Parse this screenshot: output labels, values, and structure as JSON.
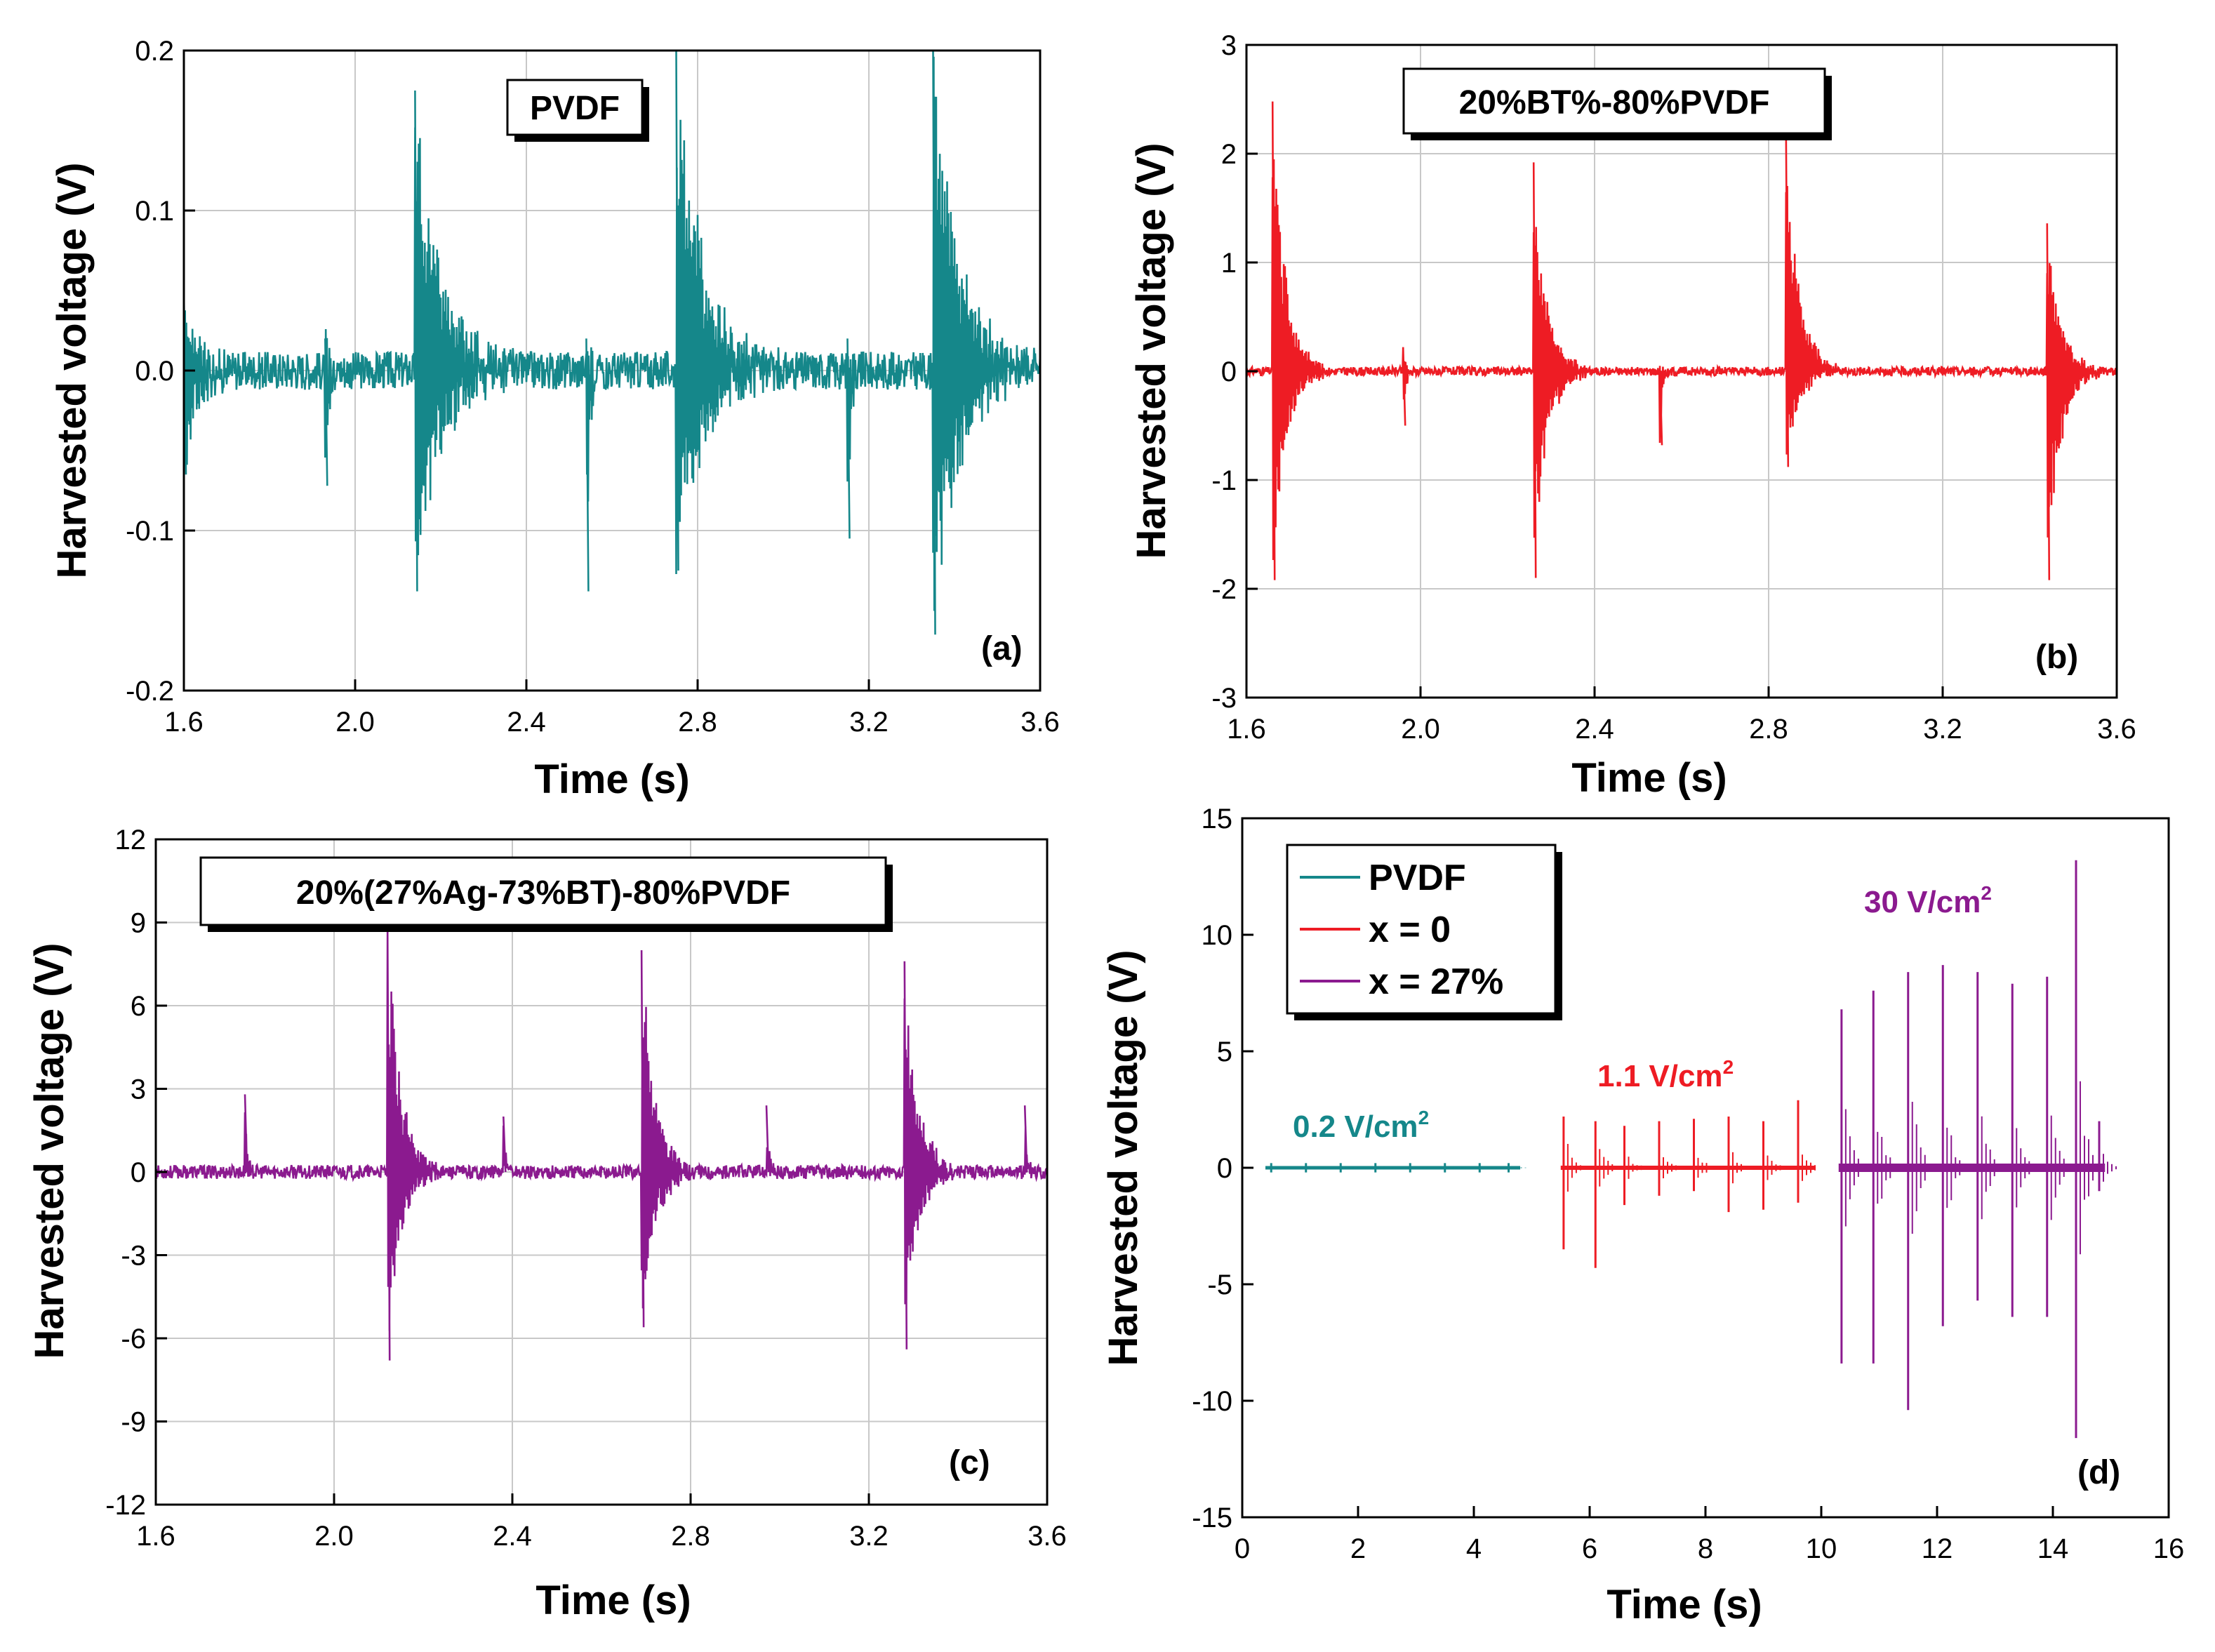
{
  "colors": {
    "pvdf": "#15878a",
    "bt": "#ee1c24",
    "ag": "#8b1a8f",
    "grid": "#c8c8c8"
  },
  "chart_data": [
    {
      "id": "a",
      "type": "line",
      "title": "",
      "box_label": "PVDF",
      "panel_label": "(a)",
      "xlabel": "Time (s)",
      "ylabel": "Harvested voltage (V)",
      "xlim": [
        1.6,
        3.6
      ],
      "ylim": [
        -0.2,
        0.2
      ],
      "xticks": [
        1.6,
        2.0,
        2.4,
        2.8,
        3.2,
        3.6
      ],
      "xtick_labels": [
        "1.6",
        "2.0",
        "2.4",
        "2.8",
        "3.2",
        "3.6"
      ],
      "yticks": [
        -0.2,
        -0.1,
        0.0,
        0.1,
        0.2
      ],
      "ytick_labels": [
        "-0.2",
        "-0.1",
        "0.0",
        "0.1",
        "0.2"
      ],
      "grid": true,
      "series": [
        {
          "name": "PVDF",
          "color": "#15878a",
          "noise": 0.012,
          "bursts": [
            {
              "t": 1.6,
              "pos": 0.05,
              "neg": -0.065,
              "decay": 0.03
            },
            {
              "t": 1.93,
              "pos": 0.02,
              "neg": -0.072,
              "decay": 0.008
            },
            {
              "t": 2.14,
              "pos": 0.175,
              "neg": -0.138,
              "decay": 0.06
            },
            {
              "t": 2.54,
              "pos": 0.02,
              "neg": -0.138,
              "decay": 0.008
            },
            {
              "t": 2.75,
              "pos": 0.2,
              "neg": -0.125,
              "decay": 0.06
            },
            {
              "t": 3.15,
              "pos": 0.02,
              "neg": -0.105,
              "decay": 0.008
            },
            {
              "t": 3.35,
              "pos": 0.2,
              "neg": -0.165,
              "decay": 0.06
            }
          ]
        }
      ]
    },
    {
      "id": "b",
      "type": "line",
      "title": "",
      "box_label": "20%BT%-80%PVDF",
      "panel_label": "(b)",
      "xlabel": "Time (s)",
      "ylabel": "Harvested voltage (V)",
      "xlim": [
        1.6,
        3.6
      ],
      "ylim": [
        -3,
        3
      ],
      "xticks": [
        1.6,
        2.0,
        2.4,
        2.8,
        3.2,
        3.6
      ],
      "xtick_labels": [
        "1.6",
        "2.0",
        "2.4",
        "2.8",
        "3.2",
        "3.6"
      ],
      "yticks": [
        -3,
        -2,
        -1,
        0,
        1,
        2,
        3
      ],
      "ytick_labels": [
        "-3",
        "-2",
        "-1",
        "0",
        "1",
        "2",
        "3"
      ],
      "grid": true,
      "series": [
        {
          "name": "x = 0",
          "color": "#ee1c24",
          "noise": 0.04,
          "bursts": [
            {
              "t": 1.66,
              "pos": 2.48,
              "neg": -1.92,
              "decay": 0.03
            },
            {
              "t": 1.96,
              "pos": 0.22,
              "neg": -0.5,
              "decay": 0.006
            },
            {
              "t": 2.26,
              "pos": 1.92,
              "neg": -1.9,
              "decay": 0.03
            },
            {
              "t": 2.55,
              "pos": 0.05,
              "neg": -0.68,
              "decay": 0.006
            },
            {
              "t": 2.84,
              "pos": 2.2,
              "neg": -0.88,
              "decay": 0.03
            },
            {
              "t": 3.44,
              "pos": 1.36,
              "neg": -1.92,
              "decay": 0.03
            }
          ]
        }
      ]
    },
    {
      "id": "c",
      "type": "line",
      "title": "",
      "box_label": "20%(27%Ag-73%BT)-80%PVDF",
      "panel_label": "(c)",
      "xlabel": "Time (s)",
      "ylabel": "Harvested voltage (V)",
      "xlim": [
        1.6,
        3.6
      ],
      "ylim": [
        -12,
        12
      ],
      "xticks": [
        1.6,
        2.0,
        2.4,
        2.8,
        3.2,
        3.6
      ],
      "xtick_labels": [
        "1.6",
        "2.0",
        "2.4",
        "2.8",
        "3.2",
        "3.6"
      ],
      "yticks": [
        -12,
        -9,
        -6,
        -3,
        0,
        3,
        6,
        9,
        12
      ],
      "ytick_labels": [
        "-12",
        "-9",
        "-6",
        "-3",
        "0",
        "3",
        "6",
        "9",
        "12"
      ],
      "grid": true,
      "series": [
        {
          "name": "x = 27%",
          "color": "#8b1a8f",
          "noise": 0.25,
          "bursts": [
            {
              "t": 1.8,
              "pos": 2.8,
              "neg": 0.0,
              "decay": 0.005
            },
            {
              "t": 2.12,
              "pos": 8.7,
              "neg": -6.8,
              "decay": 0.03
            },
            {
              "t": 2.38,
              "pos": 2.0,
              "neg": 0.0,
              "decay": 0.005
            },
            {
              "t": 2.69,
              "pos": 8.0,
              "neg": -5.6,
              "decay": 0.03
            },
            {
              "t": 2.97,
              "pos": 2.4,
              "neg": 0.0,
              "decay": 0.005
            },
            {
              "t": 3.28,
              "pos": 7.6,
              "neg": -6.4,
              "decay": 0.03
            },
            {
              "t": 3.55,
              "pos": 2.4,
              "neg": 0.0,
              "decay": 0.005
            }
          ]
        }
      ]
    },
    {
      "id": "d",
      "type": "line",
      "title": "",
      "panel_label": "(d)",
      "xlabel": "Time (s)",
      "ylabel": "Harvested voltage (V)",
      "xlim": [
        0,
        16
      ],
      "ylim": [
        -15,
        15
      ],
      "xticks": [
        0,
        2,
        4,
        6,
        8,
        10,
        12,
        14,
        16
      ],
      "xtick_labels": [
        "0",
        "2",
        "4",
        "6",
        "8",
        "10",
        "12",
        "14",
        "16"
      ],
      "yticks": [
        -15,
        -10,
        -5,
        0,
        5,
        10,
        15
      ],
      "ytick_labels": [
        "-15",
        "-10",
        "-5",
        "0",
        "5",
        "10",
        "15"
      ],
      "grid": false,
      "legend": {
        "position": "top-left",
        "entries": [
          "PVDF",
          "x = 0",
          "x = 27%"
        ]
      },
      "annotations": [
        {
          "text": "0.2 V/cm",
          "sup": "2",
          "series": "PVDF"
        },
        {
          "text": "1.1 V/cm",
          "sup": "2",
          "series": "x = 0"
        },
        {
          "text": "30 V/cm",
          "sup": "2",
          "series": "x = 27%"
        }
      ],
      "series": [
        {
          "name": "PVDF",
          "color": "#15878a",
          "x_range": [
            0.4,
            4.8
          ],
          "spikes": [
            {
              "t": 0.5,
              "pos": 0.2,
              "neg": -0.2
            },
            {
              "t": 1.1,
              "pos": 0.2,
              "neg": -0.2
            },
            {
              "t": 1.7,
              "pos": 0.2,
              "neg": -0.2
            },
            {
              "t": 2.3,
              "pos": 0.2,
              "neg": -0.2
            },
            {
              "t": 2.9,
              "pos": 0.2,
              "neg": -0.2
            },
            {
              "t": 3.5,
              "pos": 0.2,
              "neg": -0.2
            },
            {
              "t": 4.1,
              "pos": 0.2,
              "neg": -0.2
            },
            {
              "t": 4.6,
              "pos": 0.2,
              "neg": -0.2
            }
          ]
        },
        {
          "name": "x = 0",
          "color": "#ee1c24",
          "x_range": [
            5.5,
            9.9
          ],
          "spikes": [
            {
              "t": 5.55,
              "pos": 2.2,
              "neg": -3.5
            },
            {
              "t": 6.1,
              "pos": 2.0,
              "neg": -4.3
            },
            {
              "t": 6.6,
              "pos": 1.8,
              "neg": -1.6
            },
            {
              "t": 7.2,
              "pos": 2.0,
              "neg": -1.2
            },
            {
              "t": 7.8,
              "pos": 2.1,
              "neg": -1.0
            },
            {
              "t": 8.4,
              "pos": 2.2,
              "neg": -1.9
            },
            {
              "t": 9.0,
              "pos": 2.0,
              "neg": -1.8
            },
            {
              "t": 9.6,
              "pos": 2.9,
              "neg": -1.5
            }
          ]
        },
        {
          "name": "x = 27%",
          "color": "#8b1a8f",
          "x_range": [
            10.3,
            14.9
          ],
          "spikes": [
            {
              "t": 10.35,
              "pos": 6.8,
              "neg": -8.4
            },
            {
              "t": 10.9,
              "pos": 7.6,
              "neg": -8.4
            },
            {
              "t": 11.5,
              "pos": 8.4,
              "neg": -10.4
            },
            {
              "t": 12.1,
              "pos": 8.7,
              "neg": -6.8
            },
            {
              "t": 12.7,
              "pos": 8.4,
              "neg": -5.7
            },
            {
              "t": 13.3,
              "pos": 7.9,
              "neg": -6.4
            },
            {
              "t": 13.9,
              "pos": 8.2,
              "neg": -6.4
            },
            {
              "t": 14.4,
              "pos": 13.2,
              "neg": -11.6
            },
            {
              "t": 14.8,
              "pos": 2.0,
              "neg": -1.0
            }
          ]
        }
      ]
    }
  ]
}
